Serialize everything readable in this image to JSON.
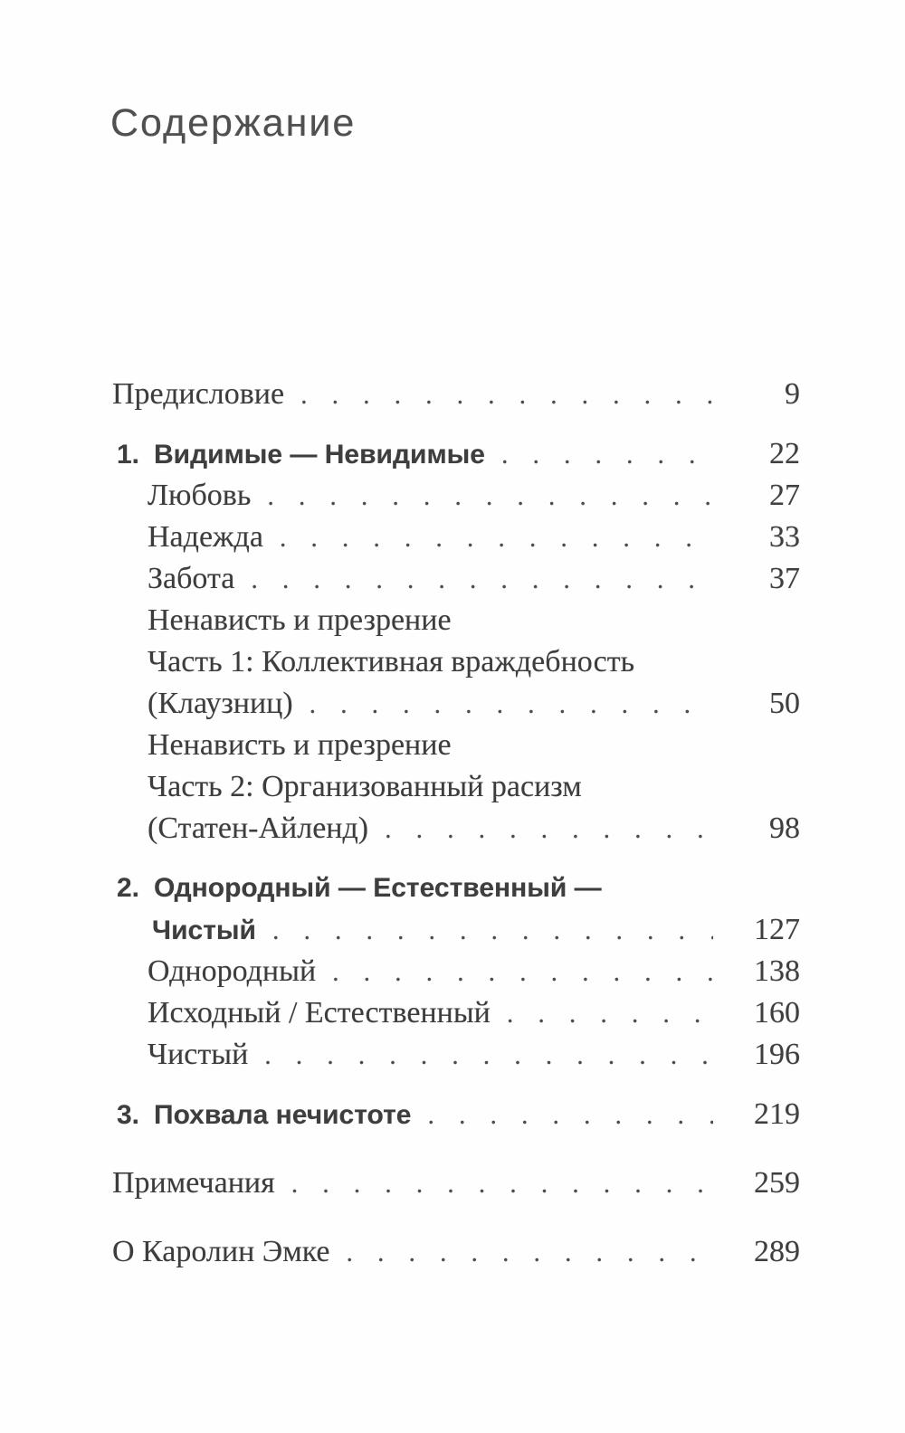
{
  "title": "Содержание",
  "colors": {
    "background": "#fefefe",
    "text": "#3d3d3d",
    "title": "#505050",
    "page_numbers": "#3f3f3f",
    "dot_leader": "#4c4c4c"
  },
  "toc": {
    "rows": [
      {
        "kind": "top",
        "gap": "none",
        "text": "Предисловие",
        "page": "9"
      },
      {
        "kind": "chapter",
        "gap": "chapter",
        "num": "1.",
        "text": "Видимые — Невидимые",
        "page": "22"
      },
      {
        "kind": "sub",
        "gap": "none",
        "text": "Любовь",
        "page": "27"
      },
      {
        "kind": "sub",
        "gap": "none",
        "text": "Надежда",
        "page": "33"
      },
      {
        "kind": "sub",
        "gap": "none",
        "text": "Забота",
        "page": "37"
      },
      {
        "kind": "sub",
        "gap": "none",
        "text": "Ненависть и презрение"
      },
      {
        "kind": "sub",
        "gap": "none",
        "text": "Часть 1: Коллективная враждебность"
      },
      {
        "kind": "sub",
        "gap": "none",
        "text": "(Клаузниц)",
        "page": "50"
      },
      {
        "kind": "sub",
        "gap": "none",
        "text": "Ненависть и презрение"
      },
      {
        "kind": "sub",
        "gap": "none",
        "text": "Часть 2: Организованный расизм"
      },
      {
        "kind": "sub",
        "gap": "none",
        "text": "(Статен-Айленд)",
        "page": "98"
      },
      {
        "kind": "chapter",
        "gap": "chapter",
        "num": "2.",
        "text": "Однородный — Естественный —"
      },
      {
        "kind": "chapter-cont",
        "gap": "none",
        "text": "Чистый",
        "page": "127"
      },
      {
        "kind": "sub",
        "gap": "none",
        "text": "Однородный",
        "page": "138"
      },
      {
        "kind": "sub",
        "gap": "none",
        "text": "Исходный / Естественный",
        "page": "160"
      },
      {
        "kind": "sub",
        "gap": "none",
        "text": "Чистый",
        "page": "196"
      },
      {
        "kind": "chapter",
        "gap": "chapter",
        "num": "3.",
        "text": "Похвала нечистоте",
        "page": "219"
      },
      {
        "kind": "top",
        "gap": "section",
        "text": "Примечания",
        "page": "259"
      },
      {
        "kind": "top",
        "gap": "section",
        "text": "О Каролин Эмке",
        "page": "289"
      }
    ]
  }
}
